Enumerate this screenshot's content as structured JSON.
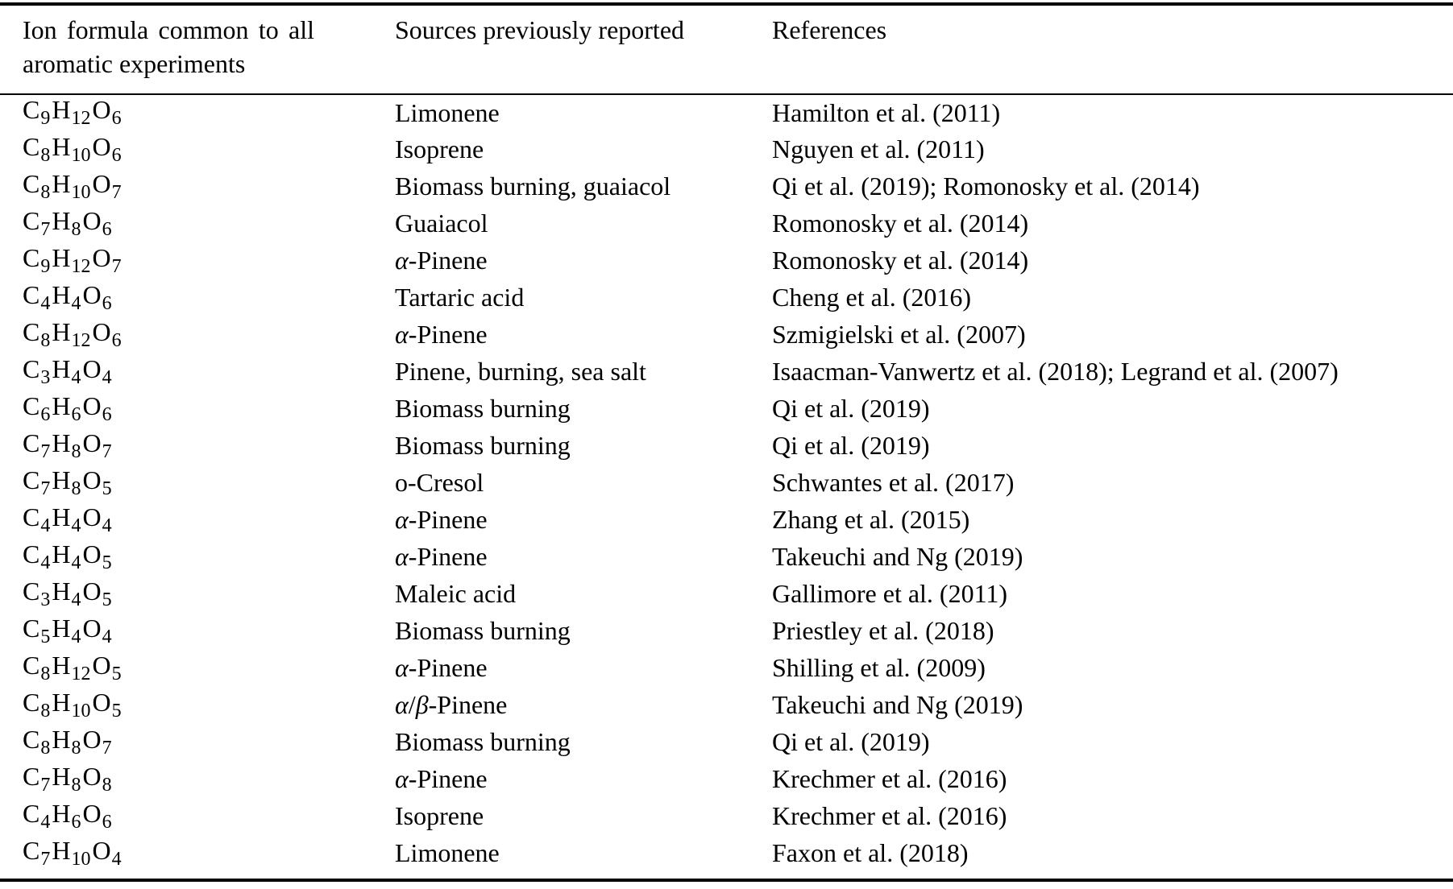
{
  "page": {
    "background": "#ffffff",
    "text_color": "#000000",
    "rule_color": "#000000"
  },
  "table": {
    "headers": [
      {
        "label": "Ion formula common to all aromatic experiments"
      },
      {
        "label": "Sources previously reported"
      },
      {
        "label": "References"
      }
    ],
    "rows": [
      {
        "formula": "C9H12O6",
        "source": "Limonene",
        "reference": "Hamilton et al. (2011)"
      },
      {
        "formula": "C8H10O6",
        "source": "Isoprene",
        "reference": "Nguyen et al. (2011)"
      },
      {
        "formula": "C8H10O7",
        "source": "Biomass burning, guaiacol",
        "reference": "Qi et al. (2019); Romonosky et al. (2014)"
      },
      {
        "formula": "C7H8O6",
        "source": "Guaiacol",
        "reference": "Romonosky et al. (2014)"
      },
      {
        "formula": "C9H12O7",
        "source": "α-Pinene",
        "reference": "Romonosky et al. (2014)"
      },
      {
        "formula": "C4H4O6",
        "source": "Tartaric acid",
        "reference": "Cheng et al. (2016)"
      },
      {
        "formula": "C8H12O6",
        "source": "α-Pinene",
        "reference": "Szmigielski et al. (2007)"
      },
      {
        "formula": "C3H4O4",
        "source": "Pinene, burning, sea salt",
        "reference": "Isaacman-Vanwertz et al. (2018); Legrand et al. (2007)"
      },
      {
        "formula": "C6H6O6",
        "source": "Biomass burning",
        "reference": "Qi et al. (2019)"
      },
      {
        "formula": "C7H8O7",
        "source": "Biomass burning",
        "reference": "Qi et al. (2019)"
      },
      {
        "formula": "C7H8O5",
        "source": "o-Cresol",
        "reference": "Schwantes et al. (2017)"
      },
      {
        "formula": "C4H4O4",
        "source": "α-Pinene",
        "reference": "Zhang et al. (2015)"
      },
      {
        "formula": "C4H4O5",
        "source": "α-Pinene",
        "reference": "Takeuchi and Ng (2019)"
      },
      {
        "formula": "C3H4O5",
        "source": "Maleic acid",
        "reference": "Gallimore et al. (2011)"
      },
      {
        "formula": "C5H4O4",
        "source": "Biomass burning",
        "reference": "Priestley et al. (2018)"
      },
      {
        "formula": "C8H12O5",
        "source": "α-Pinene",
        "reference": "Shilling et al. (2009)"
      },
      {
        "formula": "C8H10O5",
        "source": "α/β-Pinene",
        "reference": "Takeuchi and Ng (2019)"
      },
      {
        "formula": "C8H8O7",
        "source": "Biomass burning",
        "reference": "Qi et al. (2019)"
      },
      {
        "formula": "C7H8O8",
        "source": "α-Pinene",
        "reference": "Krechmer et al. (2016)"
      },
      {
        "formula": "C4H6O6",
        "source": "Isoprene",
        "reference": "Krechmer et al. (2016)"
      },
      {
        "formula": "C7H10O4",
        "source": "Limonene",
        "reference": "Faxon et al. (2018)"
      }
    ]
  }
}
